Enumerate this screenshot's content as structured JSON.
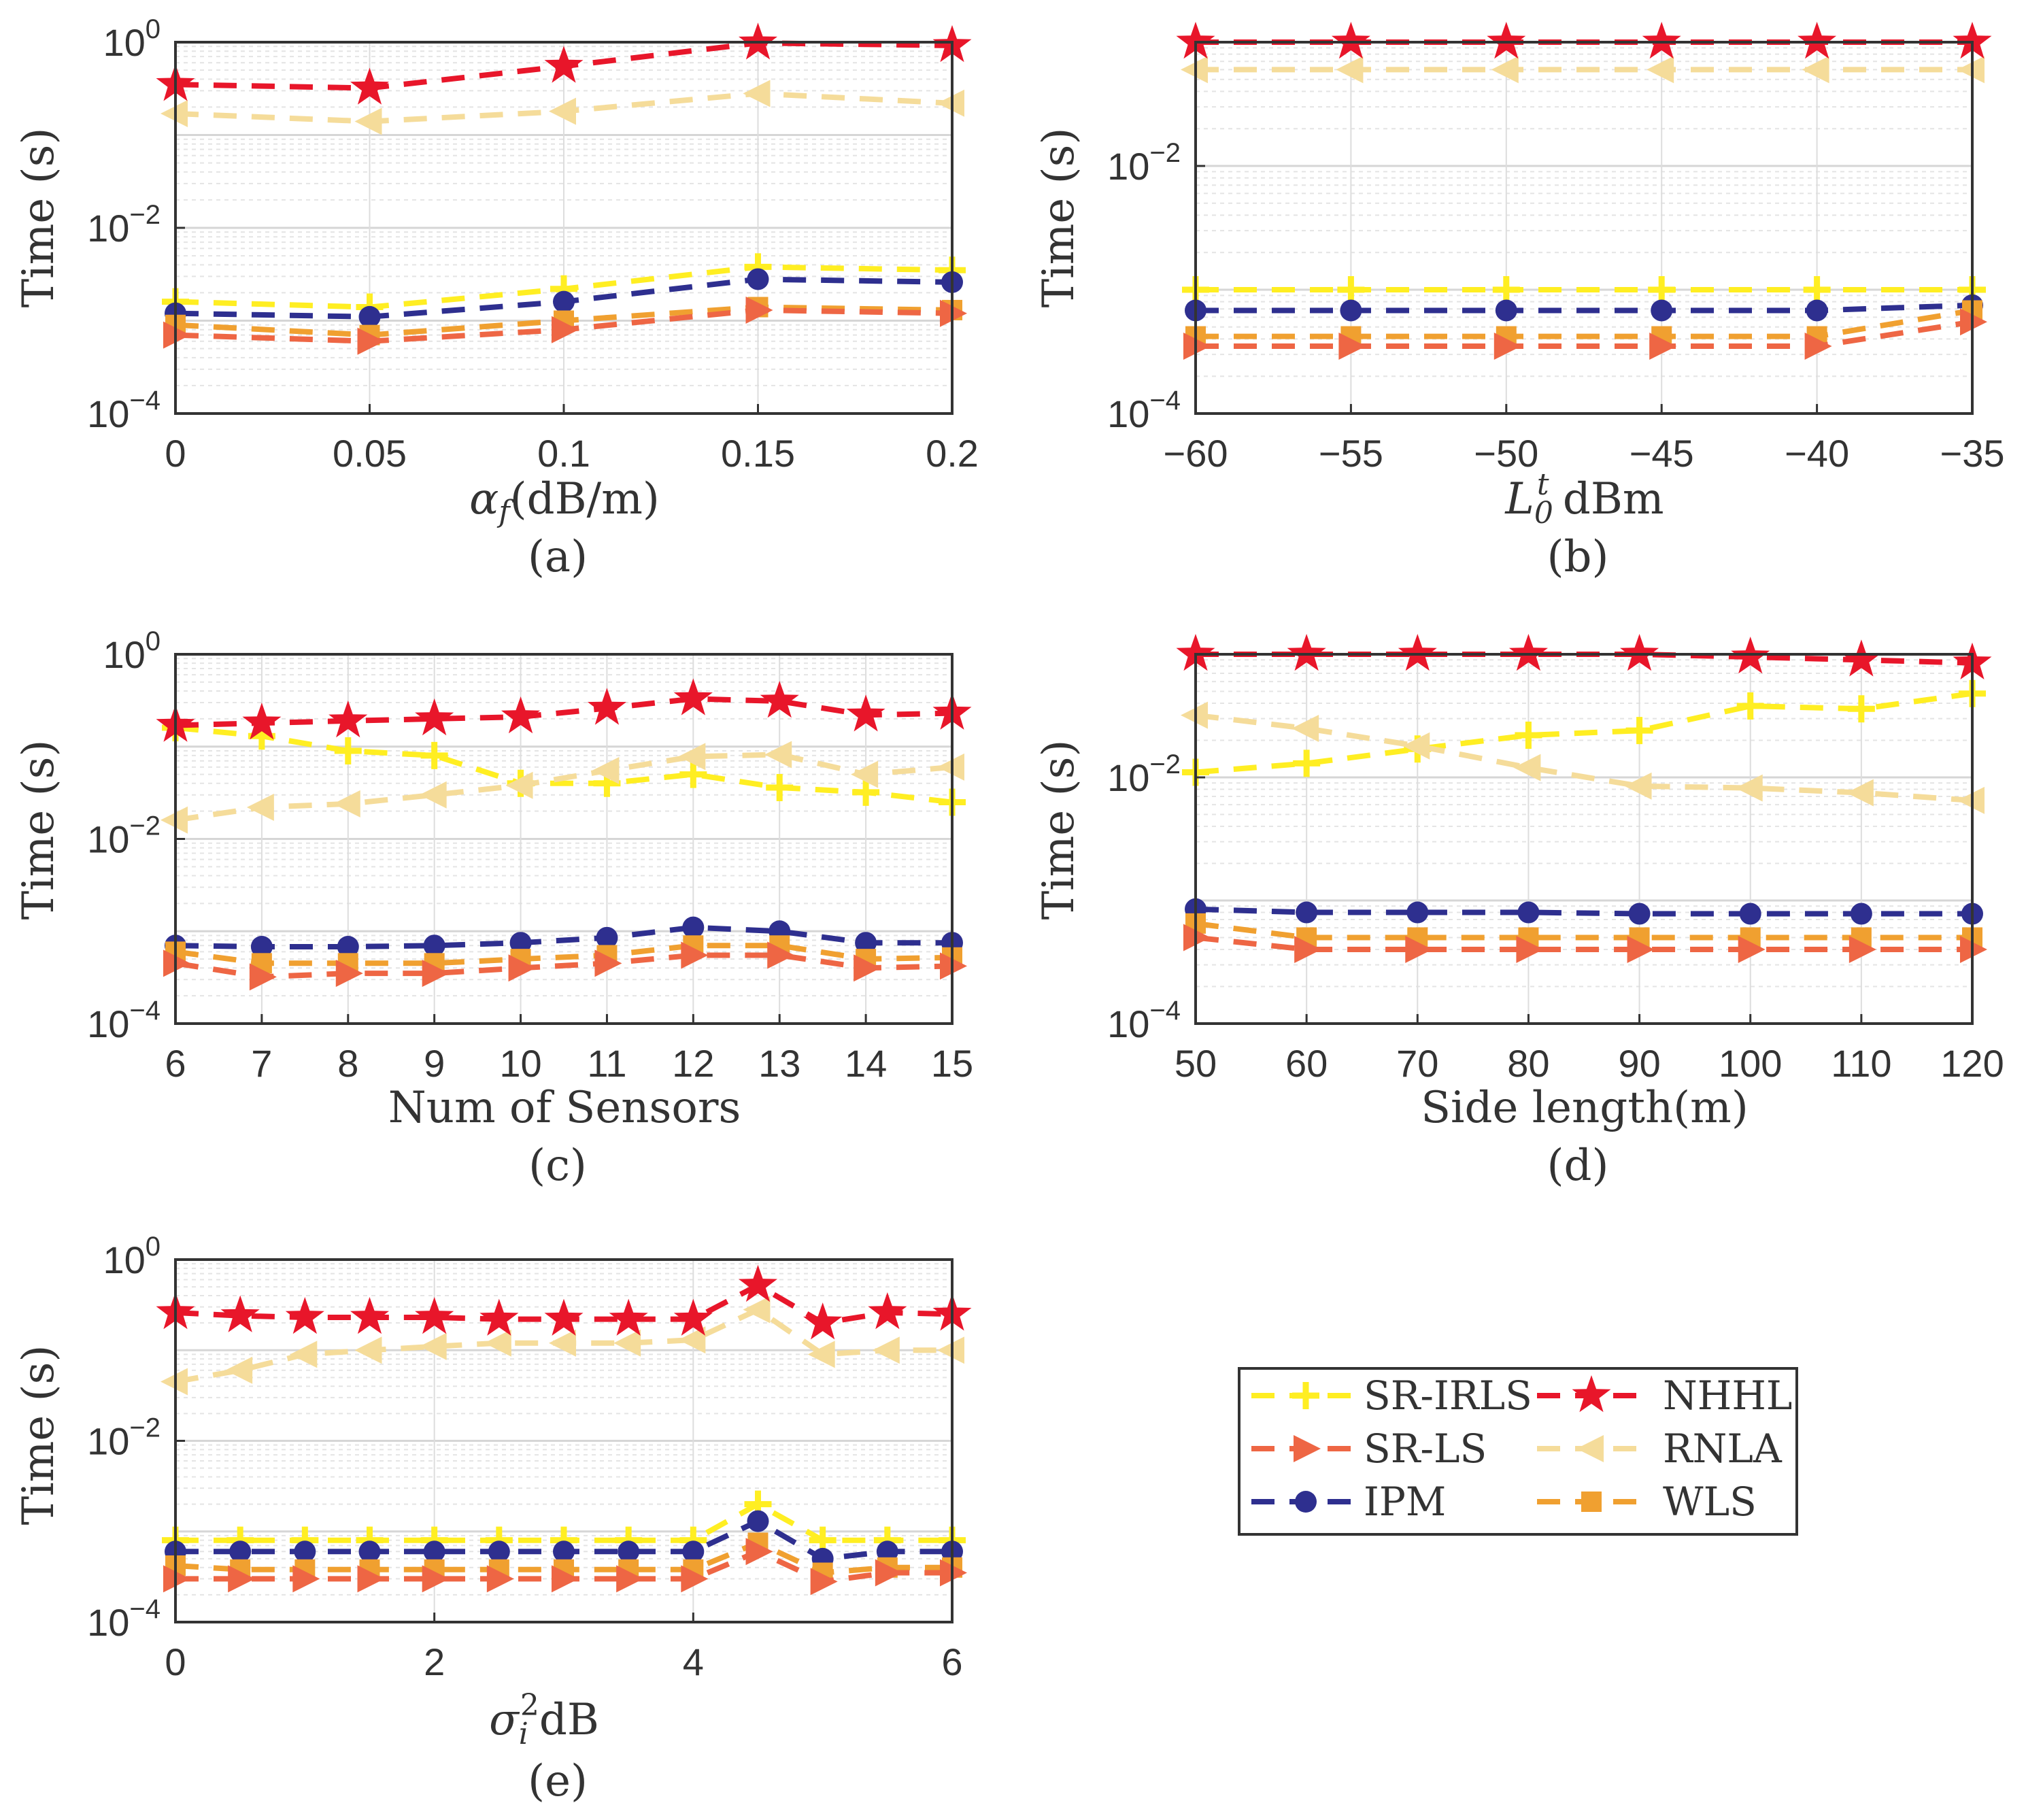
{
  "legend": {
    "entries": [
      {
        "name": "SR-IRLS",
        "color": "#ffee22",
        "marker": "plus"
      },
      {
        "name": "NHHL",
        "color": "#e8162a",
        "marker": "star"
      },
      {
        "name": "SR-LS",
        "color": "#ee6644",
        "marker": "tri-right"
      },
      {
        "name": "RNLA",
        "color": "#f5dc9a",
        "marker": "tri-left"
      },
      {
        "name": "IPM",
        "color": "#2e2f8f",
        "marker": "circle"
      },
      {
        "name": "WLS",
        "color": "#f0a030",
        "marker": "square"
      }
    ]
  },
  "chart_data": [
    {
      "id": "a",
      "type": "line",
      "caption": "(a)",
      "ylabel": "Time (s)",
      "xlabel": "α_f(dB/m)",
      "xlabel_parts": {
        "sym": "α",
        "sub": "f",
        "rest": "(dB/m)"
      },
      "yscale": "log",
      "ylim": [
        0.0001,
        1
      ],
      "xlim": [
        0,
        0.2
      ],
      "yticks": [
        {
          "exp": "0"
        },
        {
          "exp": "-2"
        },
        {
          "exp": "-4"
        }
      ],
      "xticks": [
        "0",
        "0.05",
        "0.1",
        "0.15",
        "0.2"
      ],
      "x": [
        0,
        0.05,
        0.1,
        0.15,
        0.2
      ],
      "series": [
        {
          "name": "RNLA",
          "values": [
            0.17,
            0.14,
            0.18,
            0.28,
            0.22
          ]
        },
        {
          "name": "SR-IRLS",
          "values": [
            0.0016,
            0.0014,
            0.0022,
            0.0038,
            0.0035
          ]
        },
        {
          "name": "IPM",
          "values": [
            0.0012,
            0.0011,
            0.0016,
            0.0028,
            0.0026
          ]
        },
        {
          "name": "WLS",
          "values": [
            0.0009,
            0.0007,
            0.001,
            0.0014,
            0.0013
          ]
        },
        {
          "name": "SR-LS",
          "values": [
            0.0007,
            0.0006,
            0.0008,
            0.0013,
            0.0012
          ]
        },
        {
          "name": "NHHL",
          "values": [
            0.35,
            0.32,
            0.55,
            0.98,
            0.92
          ]
        }
      ]
    },
    {
      "id": "b",
      "type": "line",
      "caption": "(b)",
      "ylabel": "Time (s)",
      "xlabel": "L_0^t dBm",
      "xlabel_parts": {
        "sym": "L",
        "sub": "0",
        "sup": "t",
        "rest": " dBm"
      },
      "yscale": "log",
      "ylim": [
        0.0001,
        0.1
      ],
      "xlim": [
        -60,
        -35
      ],
      "yticks": [
        {
          "exp": "-2"
        },
        {
          "exp": "-4"
        }
      ],
      "xticks": [
        "−60",
        "−55",
        "−50",
        "−45",
        "−40",
        "−35"
      ],
      "x": [
        -60,
        -55,
        -50,
        -45,
        -40,
        -35
      ],
      "series": [
        {
          "name": "RNLA",
          "values": [
            0.06,
            0.06,
            0.06,
            0.06,
            0.06,
            0.06
          ]
        },
        {
          "name": "SR-IRLS",
          "values": [
            0.001,
            0.001,
            0.001,
            0.001,
            0.001,
            0.001
          ]
        },
        {
          "name": "IPM",
          "values": [
            0.00068,
            0.00068,
            0.00068,
            0.00068,
            0.00068,
            0.00075
          ]
        },
        {
          "name": "WLS",
          "values": [
            0.00042,
            0.00042,
            0.00042,
            0.00042,
            0.00042,
            0.00068
          ]
        },
        {
          "name": "SR-LS",
          "values": [
            0.00035,
            0.00035,
            0.00035,
            0.00035,
            0.00035,
            0.00055
          ]
        },
        {
          "name": "NHHL",
          "values": [
            0.1,
            0.1,
            0.1,
            0.1,
            0.1,
            0.1
          ]
        }
      ]
    },
    {
      "id": "c",
      "type": "line",
      "caption": "(c)",
      "ylabel": "Time (s)",
      "xlabel": "Num of Sensors",
      "yscale": "log",
      "ylim": [
        0.0001,
        1
      ],
      "xlim": [
        6,
        15
      ],
      "yticks": [
        {
          "exp": "0"
        },
        {
          "exp": "-2"
        },
        {
          "exp": "-4"
        }
      ],
      "xticks": [
        "6",
        "7",
        "8",
        "9",
        "10",
        "11",
        "12",
        "13",
        "14",
        "15"
      ],
      "x": [
        6,
        7,
        8,
        9,
        10,
        11,
        12,
        13,
        14,
        15
      ],
      "series": [
        {
          "name": "SR-IRLS",
          "values": [
            0.16,
            0.13,
            0.09,
            0.08,
            0.04,
            0.04,
            0.05,
            0.036,
            0.032,
            0.025
          ]
        },
        {
          "name": "RNLA",
          "values": [
            0.016,
            0.022,
            0.024,
            0.03,
            0.038,
            0.055,
            0.078,
            0.082,
            0.05,
            0.06
          ]
        },
        {
          "name": "IPM",
          "values": [
            0.0007,
            0.00068,
            0.00068,
            0.0007,
            0.00075,
            0.00085,
            0.0011,
            0.001,
            0.00075,
            0.00075
          ]
        },
        {
          "name": "WLS",
          "values": [
            0.0006,
            0.00045,
            0.00045,
            0.00045,
            0.0005,
            0.00055,
            0.0007,
            0.0007,
            0.0005,
            0.00052
          ]
        },
        {
          "name": "SR-LS",
          "values": [
            0.00045,
            0.00032,
            0.00035,
            0.00035,
            0.0004,
            0.00045,
            0.00055,
            0.00055,
            0.0004,
            0.00042
          ]
        },
        {
          "name": "NHHL",
          "values": [
            0.17,
            0.18,
            0.19,
            0.2,
            0.21,
            0.26,
            0.33,
            0.31,
            0.22,
            0.23
          ]
        }
      ]
    },
    {
      "id": "d",
      "type": "line",
      "caption": "(d)",
      "ylabel": "Time (s)",
      "xlabel": "Side length(m)",
      "yscale": "log",
      "ylim": [
        0.0001,
        0.1
      ],
      "xlim": [
        50,
        120
      ],
      "yticks": [
        {
          "exp": "-2"
        },
        {
          "exp": "-4"
        }
      ],
      "xticks": [
        "50",
        "60",
        "70",
        "80",
        "90",
        "100",
        "110",
        "120"
      ],
      "x": [
        50,
        60,
        70,
        80,
        90,
        100,
        110,
        120
      ],
      "series": [
        {
          "name": "SR-IRLS",
          "values": [
            0.011,
            0.013,
            0.017,
            0.022,
            0.024,
            0.038,
            0.036,
            0.048
          ]
        },
        {
          "name": "RNLA",
          "values": [
            0.032,
            0.025,
            0.018,
            0.012,
            0.0085,
            0.0082,
            0.0075,
            0.0065
          ]
        },
        {
          "name": "IPM",
          "values": [
            0.00085,
            0.0008,
            0.0008,
            0.0008,
            0.00078,
            0.00078,
            0.00078,
            0.00078
          ]
        },
        {
          "name": "WLS",
          "values": [
            0.00065,
            0.0005,
            0.0005,
            0.0005,
            0.0005,
            0.0005,
            0.0005,
            0.0005
          ]
        },
        {
          "name": "SR-LS",
          "values": [
            0.0005,
            0.0004,
            0.0004,
            0.0004,
            0.0004,
            0.0004,
            0.0004,
            0.0004
          ]
        },
        {
          "name": "NHHL",
          "values": [
            0.1,
            0.1,
            0.1,
            0.1,
            0.1,
            0.095,
            0.09,
            0.085
          ]
        }
      ]
    },
    {
      "id": "e",
      "type": "line",
      "caption": "(e)",
      "ylabel": "Time (s)",
      "xlabel": "σ_i^2 dB",
      "xlabel_parts": {
        "sym": "σ",
        "sub": "i",
        "sup": "2",
        "rest": "dB"
      },
      "yscale": "log",
      "ylim": [
        0.0001,
        1
      ],
      "xlim": [
        0,
        6
      ],
      "yticks": [
        {
          "exp": "0"
        },
        {
          "exp": "-2"
        },
        {
          "exp": "-4"
        }
      ],
      "xticks": [
        "0",
        "2",
        "4",
        "6"
      ],
      "x": [
        0,
        0.5,
        1,
        1.5,
        2,
        2.5,
        3,
        3.5,
        4,
        4.5,
        5,
        5.5,
        6
      ],
      "series": [
        {
          "name": "RNLA",
          "values": [
            0.045,
            0.06,
            0.09,
            0.1,
            0.11,
            0.12,
            0.12,
            0.12,
            0.13,
            0.28,
            0.09,
            0.1,
            0.1
          ]
        },
        {
          "name": "SR-IRLS",
          "values": [
            0.0008,
            0.0008,
            0.0008,
            0.0008,
            0.0008,
            0.0008,
            0.0008,
            0.0008,
            0.0008,
            0.002,
            0.0008,
            0.0008,
            0.0008
          ]
        },
        {
          "name": "IPM",
          "values": [
            0.0006,
            0.0006,
            0.0006,
            0.0006,
            0.0006,
            0.0006,
            0.0006,
            0.0006,
            0.0006,
            0.0013,
            0.0005,
            0.0006,
            0.0006
          ]
        },
        {
          "name": "WLS",
          "values": [
            0.00042,
            0.00038,
            0.00038,
            0.00038,
            0.00038,
            0.00038,
            0.00038,
            0.00038,
            0.00038,
            0.00075,
            0.00035,
            0.0004,
            0.0004
          ]
        },
        {
          "name": "SR-LS",
          "values": [
            0.0003,
            0.0003,
            0.0003,
            0.0003,
            0.0003,
            0.0003,
            0.0003,
            0.0003,
            0.0003,
            0.0006,
            0.00028,
            0.00035,
            0.00035
          ]
        },
        {
          "name": "NHHL",
          "values": [
            0.26,
            0.24,
            0.23,
            0.23,
            0.23,
            0.22,
            0.22,
            0.22,
            0.22,
            0.52,
            0.2,
            0.26,
            0.25
          ]
        }
      ]
    }
  ]
}
